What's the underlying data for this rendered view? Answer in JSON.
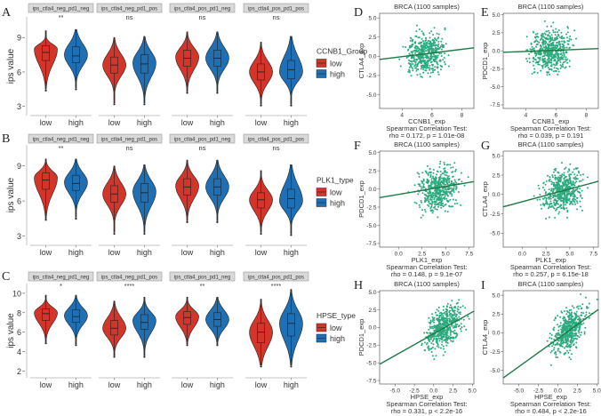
{
  "figure": {
    "panel_letters": [
      "A",
      "B",
      "C",
      "D",
      "E",
      "F",
      "G",
      "H",
      "I"
    ],
    "colors": {
      "low": "#D3352B",
      "high": "#1F6FB5",
      "scatter": "#2BAA7E",
      "fit": "#1E7A45",
      "strip": "#D9D9D9"
    }
  },
  "chart_data": [
    {
      "id": "A",
      "type": "violin",
      "ylabel": "ips value",
      "yticks": [
        3,
        6,
        9
      ],
      "ylim": [
        2.2,
        10.8
      ],
      "legend_title": "CCNB1_Group",
      "legend_labels": [
        "low",
        "high"
      ],
      "categories": [
        "low",
        "high"
      ],
      "facets": [
        {
          "title": "ips_ctla4_neg_pd1_neg",
          "signif": "**",
          "low": {
            "min": 4.5,
            "q1": 7.0,
            "median": 7.7,
            "q3": 8.3,
            "max": 9.6,
            "mode": 8.0
          },
          "high": {
            "min": 4.6,
            "q1": 6.8,
            "median": 7.4,
            "q3": 8.2,
            "max": 9.7,
            "mode": 7.5
          }
        },
        {
          "title": "ips_ctla4_neg_pd1_pos",
          "signif": "ns",
          "low": {
            "min": 3.3,
            "q1": 5.9,
            "median": 6.6,
            "q3": 7.3,
            "max": 9.0,
            "mode": 6.6
          },
          "high": {
            "min": 3.3,
            "q1": 5.9,
            "median": 6.7,
            "q3": 7.5,
            "max": 9.1,
            "mode": 6.8
          }
        },
        {
          "title": "ips_ctla4_pos_pd1_neg",
          "signif": "ns",
          "low": {
            "min": 4.3,
            "q1": 6.5,
            "median": 7.2,
            "q3": 7.9,
            "max": 9.5,
            "mode": 7.3
          },
          "high": {
            "min": 4.3,
            "q1": 6.5,
            "median": 7.2,
            "q3": 7.9,
            "max": 9.5,
            "mode": 7.2
          }
        },
        {
          "title": "ips_ctla4_pos_pd1_pos",
          "signif": "ns",
          "low": {
            "min": 3.2,
            "q1": 5.3,
            "median": 6.0,
            "q3": 6.7,
            "max": 8.6,
            "mode": 6.0
          },
          "high": {
            "min": 3.2,
            "q1": 5.4,
            "median": 6.2,
            "q3": 7.0,
            "max": 9.1,
            "mode": 6.0
          }
        }
      ]
    },
    {
      "id": "B",
      "type": "violin",
      "ylabel": "ips value",
      "yticks": [
        3,
        6,
        9
      ],
      "ylim": [
        2.2,
        10.8
      ],
      "legend_title": "PLK1_type",
      "legend_labels": [
        "low",
        "high"
      ],
      "categories": [
        "low",
        "high"
      ],
      "facets": [
        {
          "title": "ips_ctla4_neg_pd1_neg",
          "signif": "**",
          "low": {
            "min": 4.5,
            "q1": 7.0,
            "median": 7.8,
            "q3": 8.4,
            "max": 9.6,
            "mode": 8.0
          },
          "high": {
            "min": 4.6,
            "q1": 6.9,
            "median": 7.5,
            "q3": 8.2,
            "max": 9.6,
            "mode": 7.6
          }
        },
        {
          "title": "ips_ctla4_neg_pd1_pos",
          "signif": "ns",
          "low": {
            "min": 3.3,
            "q1": 5.9,
            "median": 6.6,
            "q3": 7.3,
            "max": 9.0,
            "mode": 6.6
          },
          "high": {
            "min": 3.3,
            "q1": 5.9,
            "median": 6.7,
            "q3": 7.5,
            "max": 9.1,
            "mode": 6.8
          }
        },
        {
          "title": "ips_ctla4_pos_pd1_neg",
          "signif": "ns",
          "low": {
            "min": 4.3,
            "q1": 6.5,
            "median": 7.2,
            "q3": 7.9,
            "max": 9.5,
            "mode": 7.3
          },
          "high": {
            "min": 4.3,
            "q1": 6.5,
            "median": 7.2,
            "q3": 7.9,
            "max": 9.5,
            "mode": 7.2
          }
        },
        {
          "title": "ips_ctla4_pos_pd1_pos",
          "signif": "ns",
          "low": {
            "min": 3.3,
            "q1": 5.4,
            "median": 6.1,
            "q3": 6.7,
            "max": 8.6,
            "mode": 6.1
          },
          "high": {
            "min": 3.2,
            "q1": 5.4,
            "median": 6.2,
            "q3": 7.0,
            "max": 9.1,
            "mode": 6.0
          }
        }
      ]
    },
    {
      "id": "C",
      "type": "violin",
      "ylabel": "ips value",
      "yticks": [
        2,
        4,
        6,
        8,
        10
      ],
      "ylim": [
        1.3,
        11.0
      ],
      "legend_title": "HPSE_type",
      "legend_labels": [
        "low",
        "high"
      ],
      "categories": [
        "low",
        "high"
      ],
      "facets": [
        {
          "title": "ips_ctla4_neg_pd1_neg",
          "signif": "*",
          "low": {
            "min": 5.0,
            "q1": 7.2,
            "median": 7.9,
            "q3": 8.4,
            "max": 9.8,
            "mode": 8.0
          },
          "high": {
            "min": 4.8,
            "q1": 7.0,
            "median": 7.6,
            "q3": 8.3,
            "max": 9.8,
            "mode": 7.7
          }
        },
        {
          "title": "ips_ctla4_neg_pd1_pos",
          "signif": "****",
          "low": {
            "min": 3.6,
            "q1": 5.7,
            "median": 6.4,
            "q3": 7.2,
            "max": 9.2,
            "mode": 6.4
          },
          "high": {
            "min": 3.6,
            "q1": 6.3,
            "median": 7.0,
            "q3": 7.8,
            "max": 9.6,
            "mode": 7.2
          }
        },
        {
          "title": "ips_ctla4_pos_pd1_neg",
          "signif": "**",
          "low": {
            "min": 4.8,
            "q1": 6.8,
            "median": 7.5,
            "q3": 8.1,
            "max": 9.6,
            "mode": 7.6
          },
          "high": {
            "min": 4.8,
            "q1": 6.6,
            "median": 7.3,
            "q3": 8.0,
            "max": 9.6,
            "mode": 7.3
          }
        },
        {
          "title": "ips_ctla4_pos_pd1_pos",
          "signif": "****",
          "low": {
            "min": 2.6,
            "q1": 4.9,
            "median": 6.0,
            "q3": 6.9,
            "max": 9.4,
            "mode": 6.0
          },
          "high": {
            "min": 2.6,
            "q1": 5.6,
            "median": 6.9,
            "q3": 7.9,
            "max": 10.4,
            "mode": 6.9
          }
        }
      ]
    },
    {
      "id": "D",
      "type": "scatter",
      "title": "BRCA (1100 samples)",
      "xlabel": "CCNB1_exp",
      "ylabel": "CTLA4_exp",
      "stat_title": "Spearman Correlation Test:",
      "stat_text": "rho = 0.172, p = 1.01e-08",
      "xticks": [
        "4",
        "6",
        "8"
      ],
      "yticks": [
        "5.0",
        "2.5",
        "0.0",
        "-2.5",
        "-5.0"
      ],
      "xlim": [
        2.5,
        8.8
      ],
      "ylim": [
        -6.8,
        5.6
      ],
      "fit_line": {
        "x": [
          2.5,
          8.8
        ],
        "y": [
          -0.4,
          1.1
        ]
      },
      "x_center": 5.6,
      "x_spread": 0.9,
      "y_center": 0.4,
      "y_spread": 1.8
    },
    {
      "id": "E",
      "type": "scatter",
      "title": "BRCA (1100 samples)",
      "xlabel": "CCNB1_exp",
      "ylabel": "PDCD1_exp",
      "stat_title": "Spearman Correlation Test:",
      "stat_text": "rho = 0.039, p = 0.191",
      "xticks": [
        "4",
        "6",
        "8"
      ],
      "yticks": [
        "5.0",
        "2.5",
        "0.0",
        "-2.5",
        "-5.0",
        "-7.5"
      ],
      "xlim": [
        2.5,
        8.8
      ],
      "ylim": [
        -8.0,
        5.2
      ],
      "fit_line": {
        "x": [
          2.5,
          8.8
        ],
        "y": [
          -0.2,
          0.3
        ]
      },
      "x_center": 5.6,
      "x_spread": 0.9,
      "y_center": 0.0,
      "y_spread": 2.0
    },
    {
      "id": "F",
      "type": "scatter",
      "title": "BRCA (1100 samples)",
      "xlabel": "PLK1_exp",
      "ylabel": "PDCD1_exp",
      "stat_title": "Spearman Correlation Test:",
      "stat_text": "rho = 0.148, p = 9.1e-07",
      "xticks": [
        "0.0",
        "2.5",
        "5.0",
        "7.5"
      ],
      "yticks": [
        "5.0",
        "2.5",
        "0.0",
        "-2.5",
        "-5.0",
        "-7.5"
      ],
      "xlim": [
        -2.0,
        8.0
      ],
      "ylim": [
        -8.0,
        5.2
      ],
      "fit_line": {
        "x": [
          -2.0,
          8.0
        ],
        "y": [
          -1.2,
          1.0
        ]
      },
      "x_center": 4.2,
      "x_spread": 1.4,
      "y_center": 0.0,
      "y_spread": 2.0
    },
    {
      "id": "G",
      "type": "scatter",
      "title": "BRCA (1100 samples)",
      "xlabel": "PLK1_exp",
      "ylabel": "CTLA4_exp",
      "stat_title": "Spearman Correlation Test:",
      "stat_text": "rho = 0.257, p = 6.15e-18",
      "xticks": [
        "0.0",
        "2.5",
        "5.0",
        "7.5"
      ],
      "yticks": [
        "5.0",
        "2.5",
        "0.0",
        "-2.5",
        "-5.0"
      ],
      "xlim": [
        -2.0,
        8.0
      ],
      "ylim": [
        -6.8,
        5.6
      ],
      "fit_line": {
        "x": [
          -2.0,
          8.0
        ],
        "y": [
          -1.6,
          1.7
        ]
      },
      "x_center": 4.2,
      "x_spread": 1.4,
      "y_center": 0.3,
      "y_spread": 1.8
    },
    {
      "id": "H",
      "type": "scatter",
      "title": "BRCA (1100 samples)",
      "xlabel": "HPSE_exp",
      "ylabel": "PDCD1_exp",
      "stat_title": "Spearman Correlation Test:",
      "stat_text": "rho = 0.331, p < 2.2e-16",
      "xticks": [
        "-5.0",
        "-2.5",
        "0.0",
        "2.5",
        "5.0"
      ],
      "yticks": [
        "5.0",
        "2.5",
        "0.0",
        "-2.5",
        "-5.0",
        "-7.5"
      ],
      "xlim": [
        -7.0,
        5.2
      ],
      "ylim": [
        -8.0,
        5.2
      ],
      "fit_line": {
        "x": [
          -7.0,
          5.2
        ],
        "y": [
          -5.2,
          2.3
        ]
      },
      "x_center": 1.4,
      "x_spread": 1.5,
      "y_center": 0.0,
      "y_spread": 1.9
    },
    {
      "id": "I",
      "type": "scatter",
      "title": "BRCA (1100 samples)",
      "xlabel": "HPSE_exp",
      "ylabel": "CTLA4_exp",
      "stat_title": "Spearman Correlation Test:",
      "stat_text": "rho = 0.484, p < 2.2e-16",
      "xticks": [
        "-5.0",
        "-2.5",
        "0.0",
        "2.5",
        "5.0"
      ],
      "yticks": [
        "5.0",
        "2.5",
        "0.0",
        "-2.5",
        "-5.0"
      ],
      "xlim": [
        -7.0,
        5.2
      ],
      "ylim": [
        -6.8,
        5.6
      ],
      "fit_line": {
        "x": [
          -7.0,
          5.2
        ],
        "y": [
          -6.0,
          3.1
        ]
      },
      "x_center": 1.4,
      "x_spread": 1.5,
      "y_center": 0.3,
      "y_spread": 1.8
    }
  ]
}
